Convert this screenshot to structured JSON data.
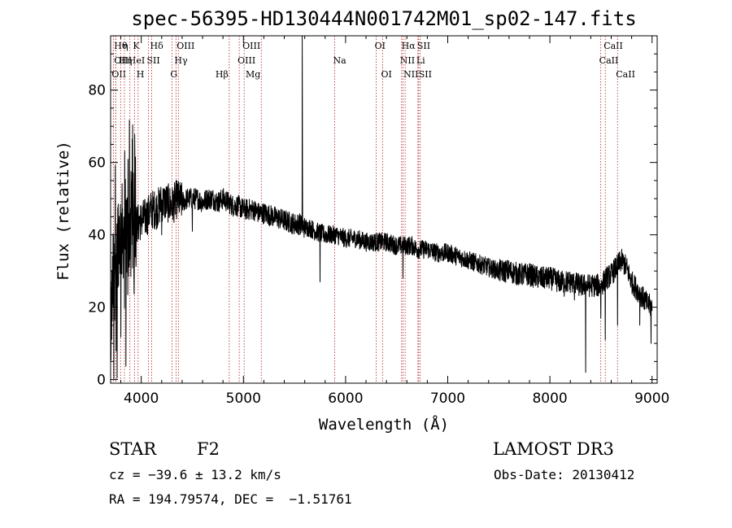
{
  "chart_data": {
    "type": "line",
    "title": "spec-56395-HD130444N001742M01_sp02-147.fits",
    "xlabel": "Wavelength (Å)",
    "ylabel": "Flux (relative)",
    "xlim": [
      3700,
      9050
    ],
    "ylim": [
      -1,
      95
    ],
    "xticks": [
      4000,
      5000,
      6000,
      7000,
      8000,
      9000
    ],
    "yticks": [
      0,
      20,
      40,
      60,
      80
    ],
    "grid": false,
    "line_color": "#000000",
    "marker_color": "#b22222",
    "spectrum_anchors": {
      "x": [
        3700,
        3720,
        3740,
        3760,
        3780,
        3800,
        3820,
        3840,
        3860,
        3880,
        3900,
        3930,
        3960,
        4000,
        4050,
        4100,
        4150,
        4200,
        4250,
        4300,
        4350,
        4400,
        4450,
        4500,
        4550,
        4600,
        4650,
        4700,
        4750,
        4800,
        4850,
        4900,
        4950,
        5000,
        5050,
        5100,
        5150,
        5200,
        5300,
        5400,
        5500,
        5550,
        5600,
        5650,
        5700,
        5800,
        5900,
        6000,
        6100,
        6200,
        6300,
        6400,
        6500,
        6550,
        6600,
        6650,
        6700,
        6800,
        6900,
        7000,
        7100,
        7200,
        7300,
        7400,
        7500,
        7600,
        7700,
        7800,
        7900,
        8000,
        8100,
        8200,
        8300,
        8400,
        8500,
        8550,
        8600,
        8650,
        8700,
        8750,
        8800,
        8850,
        8900,
        8950,
        9000
      ],
      "y": [
        12,
        25,
        35,
        38,
        40,
        40,
        41,
        42,
        40,
        42,
        41,
        42,
        43,
        44,
        45,
        47,
        47,
        49,
        49,
        48,
        50,
        49,
        50,
        50,
        50,
        49,
        50,
        50,
        49,
        50,
        49,
        48,
        48,
        47,
        47,
        47,
        46,
        46,
        45,
        44,
        43,
        43,
        42,
        42,
        41,
        40,
        40,
        39,
        39,
        38,
        38,
        38,
        37,
        37,
        37,
        37,
        36,
        36,
        35,
        35,
        34,
        33,
        32,
        31,
        30,
        30,
        29,
        29,
        28,
        28,
        27,
        27,
        26,
        26,
        26,
        28,
        29,
        31,
        33,
        31,
        27,
        25,
        23,
        21,
        20
      ]
    },
    "spike": {
      "x": 5577,
      "y": 95
    },
    "features": [
      {
        "x": 4200,
        "y": 40
      },
      {
        "x": 4500,
        "y": 41
      },
      {
        "x": 5750,
        "y": 27
      },
      {
        "x": 5890,
        "y": 38
      },
      {
        "x": 6563,
        "y": 28
      },
      {
        "x": 7600,
        "y": 30
      },
      {
        "x": 8140,
        "y": 23
      },
      {
        "x": 8240,
        "y": 22
      },
      {
        "x": 8350,
        "y": 2
      },
      {
        "x": 8498,
        "y": 17
      },
      {
        "x": 8542,
        "y": 11
      },
      {
        "x": 8662,
        "y": 15
      },
      {
        "x": 8880,
        "y": 15
      },
      {
        "x": 8990,
        "y": 10
      }
    ],
    "lines": [
      {
        "x": 3727,
        "row": 2,
        "label": "OII",
        "anchor": "start"
      },
      {
        "x": 3750,
        "row": 0,
        "label": "Hθ",
        "anchor": "start"
      },
      {
        "x": 3750,
        "row": 1,
        "label": "OII",
        "anchor": "start"
      },
      {
        "x": 3798,
        "row": 1,
        "label": "Hη",
        "anchor": "start"
      },
      {
        "x": 3835,
        "row": 0,
        "label": "η",
        "anchor": "start"
      },
      {
        "x": 3889,
        "row": 1,
        "label": "HeI",
        "anchor": "start"
      },
      {
        "x": 3934,
        "row": 0,
        "label": "K",
        "anchor": "start"
      },
      {
        "x": 3969,
        "row": 2,
        "label": "H",
        "anchor": "start"
      },
      {
        "x": 4070,
        "row": 1,
        "label": "SII",
        "anchor": "start"
      },
      {
        "x": 4102,
        "row": 0,
        "label": "Hδ",
        "anchor": "start"
      },
      {
        "x": 4300,
        "row": 2,
        "label": "G",
        "anchor": "start"
      },
      {
        "x": 4340,
        "row": 1,
        "label": "Hγ",
        "anchor": "start"
      },
      {
        "x": 4363,
        "row": 0,
        "label": "OIII",
        "anchor": "start"
      },
      {
        "x": 4861,
        "row": 2,
        "label": "Hβ",
        "anchor": "end"
      },
      {
        "x": 4959,
        "row": 1,
        "label": "OIII",
        "anchor": "start"
      },
      {
        "x": 5007,
        "row": 0,
        "label": "OIII",
        "anchor": "start"
      },
      {
        "x": 5175,
        "row": 2,
        "label": "Mg",
        "anchor": "end"
      },
      {
        "x": 5893,
        "row": 1,
        "label": "Na",
        "anchor": "start"
      },
      {
        "x": 6300,
        "row": 0,
        "label": "OI",
        "anchor": "start"
      },
      {
        "x": 6363,
        "row": 2,
        "label": "OI",
        "anchor": "start"
      },
      {
        "x": 6548,
        "row": 1,
        "label": "NII",
        "anchor": "start"
      },
      {
        "x": 6563,
        "row": 0,
        "label": "Hα",
        "anchor": "start"
      },
      {
        "x": 6583,
        "row": 2,
        "label": "NII",
        "anchor": "start"
      },
      {
        "x": 6708,
        "row": 1,
        "label": "Li",
        "anchor": "start"
      },
      {
        "x": 6716,
        "row": 0,
        "label": "SII",
        "anchor": "start"
      },
      {
        "x": 6731,
        "row": 2,
        "label": "SII",
        "anchor": "start"
      },
      {
        "x": 8498,
        "row": 1,
        "label": "CaII",
        "anchor": "start"
      },
      {
        "x": 8542,
        "row": 0,
        "label": "CaII",
        "anchor": "start"
      },
      {
        "x": 8662,
        "row": 2,
        "label": "CaII",
        "anchor": "start"
      }
    ]
  },
  "info": {
    "object_class": "STAR",
    "subclass": "F2",
    "survey": "LAMOST DR3",
    "redshift": "cz = −39.6 ± 13.2 km/s",
    "obs_date": "Obs-Date: 20130412",
    "coords": "RA = 194.79574, DEC =  −1.51761"
  }
}
